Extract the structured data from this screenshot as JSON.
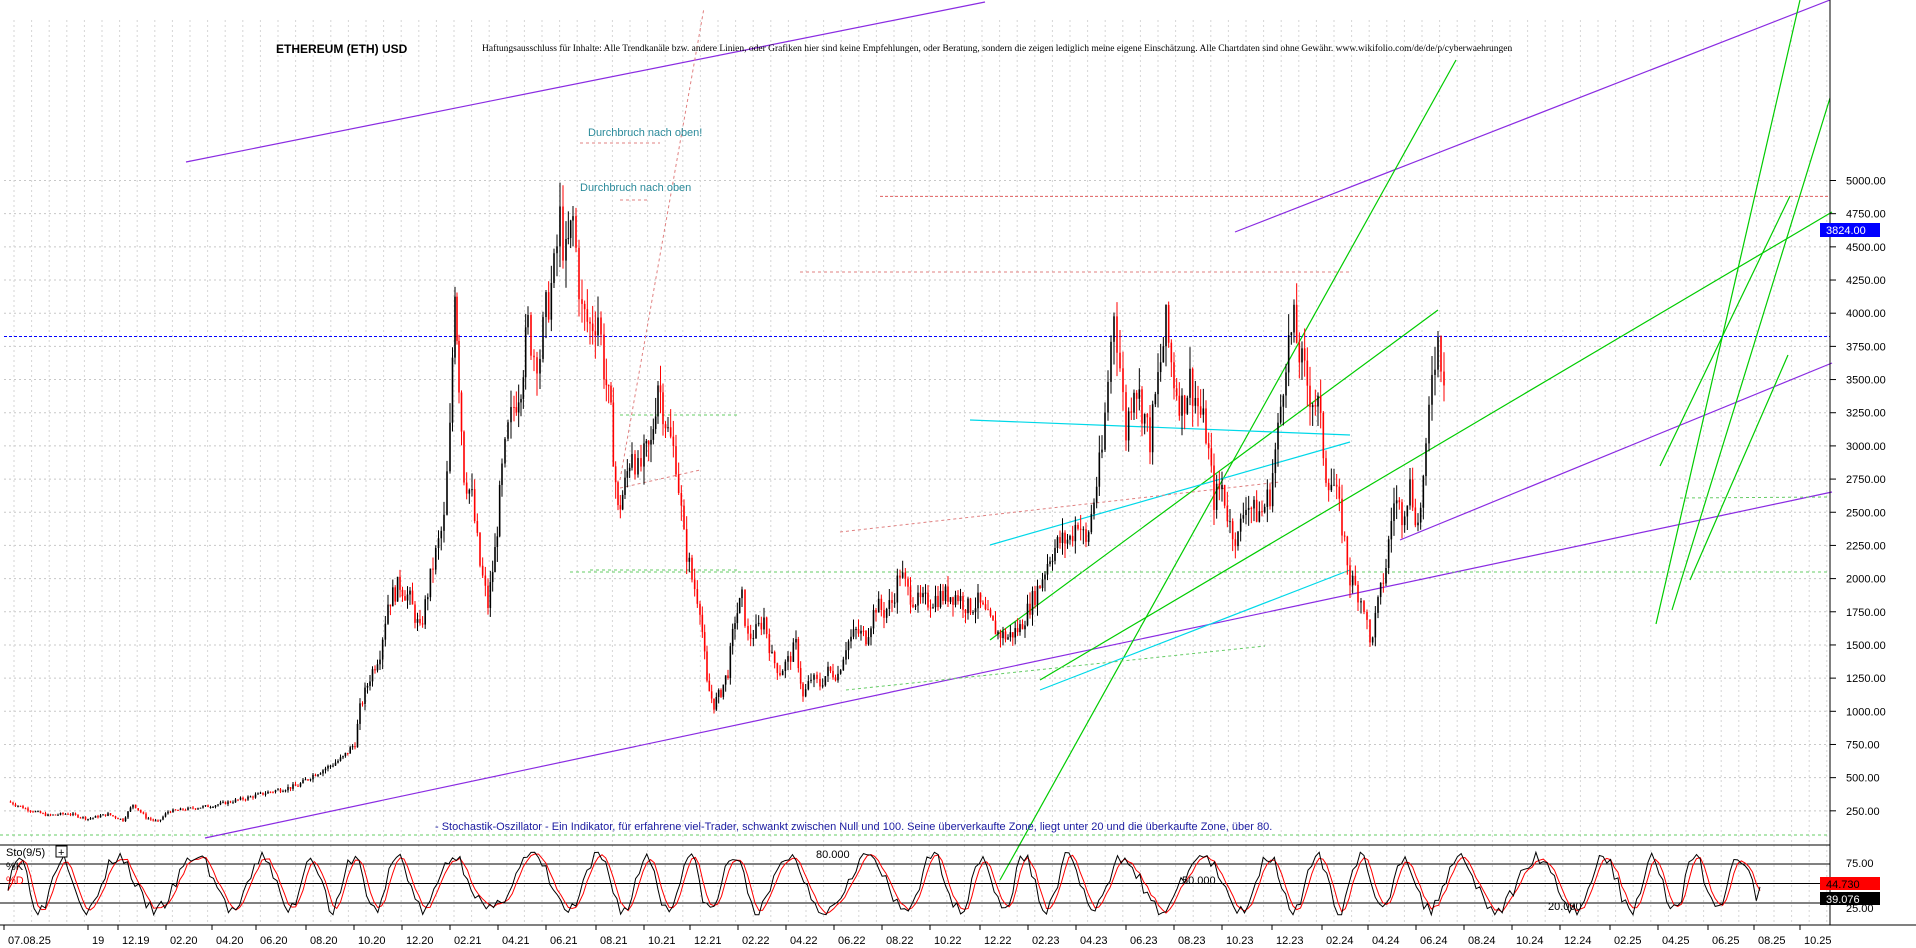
{
  "chart_data": {
    "type": "candlestick",
    "title": "ETHEREUM (ETH) USD",
    "disclaimer": "Haftungsausschluss für Inhalte: Alle Trendkanäle bzw. andere Linien, oder Grafiken hier sind keine Empfehlungen, oder Beratung, sondern die zeigen lediglich meine eigene Einschätzung. Alle Chartdaten sind ohne Gewähr.  www.wikifolio.com/de/de/p/cyberwaehrungen",
    "ylim": [
      0,
      5200
    ],
    "y_ticks": [
      "5000.00",
      "4750.00",
      "4500.00",
      "4250.00",
      "4000.00",
      "3750.00",
      "3500.00",
      "3250.00",
      "3000.00",
      "2750.00",
      "2500.00",
      "2250.00",
      "2000.00",
      "1750.00",
      "1500.00",
      "1250.00",
      "1000.00",
      "750.00",
      "500.00",
      "250.00"
    ],
    "x_ticks": [
      "07.08.25",
      "19",
      "12.19",
      "02.20",
      "04.20",
      "06.20",
      "08.20",
      "10.20",
      "12.20",
      "02.21",
      "04.21",
      "06.21",
      "08.21",
      "10.21",
      "12.21",
      "02.22",
      "04.22",
      "06.22",
      "08.22",
      "10.22",
      "12.22",
      "02.23",
      "04.23",
      "06.23",
      "08.23",
      "10.23",
      "12.23",
      "02.24",
      "04.24",
      "06.24",
      "08.24",
      "10.24",
      "12.24",
      "02.25",
      "04.25",
      "06.25",
      "08.25",
      "10.25"
    ],
    "current_price_label": "3824.00",
    "current_price": 3824,
    "price_path": [
      [
        0,
        320
      ],
      [
        10,
        290
      ],
      [
        20,
        260
      ],
      [
        40,
        215
      ],
      [
        60,
        230
      ],
      [
        80,
        190
      ],
      [
        100,
        225
      ],
      [
        115,
        180
      ],
      [
        125,
        300
      ],
      [
        138,
        200
      ],
      [
        150,
        165
      ],
      [
        160,
        245
      ],
      [
        180,
        265
      ],
      [
        205,
        290
      ],
      [
        220,
        315
      ],
      [
        235,
        340
      ],
      [
        260,
        390
      ],
      [
        290,
        440
      ],
      [
        305,
        520
      ],
      [
        320,
        580
      ],
      [
        335,
        650
      ],
      [
        347,
        760
      ],
      [
        352,
        1020
      ],
      [
        362,
        1260
      ],
      [
        372,
        1450
      ],
      [
        380,
        1820
      ],
      [
        392,
        1960
      ],
      [
        402,
        1840
      ],
      [
        412,
        1600
      ],
      [
        425,
        2100
      ],
      [
        436,
        2430
      ],
      [
        442,
        3100
      ],
      [
        447,
        4250
      ],
      [
        451,
        3500
      ],
      [
        456,
        2800
      ],
      [
        464,
        2600
      ],
      [
        472,
        2100
      ],
      [
        480,
        1800
      ],
      [
        487,
        2200
      ],
      [
        494,
        2800
      ],
      [
        500,
        3100
      ],
      [
        506,
        3300
      ],
      [
        513,
        3500
      ],
      [
        520,
        3900
      ],
      [
        526,
        3700
      ],
      [
        532,
        3700
      ],
      [
        538,
        4000
      ],
      [
        546,
        4300
      ],
      [
        552,
        4700
      ],
      [
        558,
        4400
      ],
      [
        565,
        4700
      ],
      [
        574,
        4000
      ],
      [
        582,
        3900
      ],
      [
        590,
        4000
      ],
      [
        596,
        3600
      ],
      [
        603,
        3200
      ],
      [
        610,
        2500
      ],
      [
        617,
        2700
      ],
      [
        624,
        3000
      ],
      [
        630,
        2800
      ],
      [
        636,
        2900
      ],
      [
        643,
        3000
      ],
      [
        650,
        3500
      ],
      [
        660,
        3100
      ],
      [
        668,
        2900
      ],
      [
        676,
        2300
      ],
      [
        684,
        2000
      ],
      [
        692,
        1800
      ],
      [
        699,
        1200
      ],
      [
        706,
        1050
      ],
      [
        713,
        1150
      ],
      [
        720,
        1300
      ],
      [
        727,
        1700
      ],
      [
        734,
        1850
      ],
      [
        740,
        1550
      ],
      [
        748,
        1600
      ],
      [
        756,
        1700
      ],
      [
        764,
        1400
      ],
      [
        772,
        1300
      ],
      [
        780,
        1380
      ],
      [
        788,
        1500
      ],
      [
        795,
        1100
      ],
      [
        803,
        1250
      ],
      [
        812,
        1200
      ],
      [
        820,
        1300
      ],
      [
        830,
        1280
      ],
      [
        838,
        1500
      ],
      [
        848,
        1600
      ],
      [
        858,
        1560
      ],
      [
        868,
        1800
      ],
      [
        876,
        1750
      ],
      [
        884,
        1820
      ],
      [
        892,
        2050
      ],
      [
        900,
        1900
      ],
      [
        910,
        1820
      ],
      [
        920,
        1830
      ],
      [
        930,
        1860
      ],
      [
        940,
        1880
      ],
      [
        950,
        1870
      ],
      [
        960,
        1780
      ],
      [
        970,
        1820
      ],
      [
        980,
        1700
      ],
      [
        990,
        1590
      ],
      [
        1000,
        1560
      ],
      [
        1012,
        1630
      ],
      [
        1022,
        1800
      ],
      [
        1032,
        1960
      ],
      [
        1042,
        2180
      ],
      [
        1052,
        2280
      ],
      [
        1062,
        2300
      ],
      [
        1070,
        2450
      ],
      [
        1078,
        2250
      ],
      [
        1086,
        2600
      ],
      [
        1094,
        2950
      ],
      [
        1100,
        3500
      ],
      [
        1106,
        4050
      ],
      [
        1112,
        3600
      ],
      [
        1118,
        3100
      ],
      [
        1126,
        3500
      ],
      [
        1134,
        3300
      ],
      [
        1142,
        3050
      ],
      [
        1150,
        3500
      ],
      [
        1158,
        3900
      ],
      [
        1166,
        3500
      ],
      [
        1174,
        3300
      ],
      [
        1182,
        3500
      ],
      [
        1190,
        3300
      ],
      [
        1198,
        3100
      ],
      [
        1206,
        2600
      ],
      [
        1214,
        2700
      ],
      [
        1222,
        2400
      ],
      [
        1230,
        2300
      ],
      [
        1238,
        2600
      ],
      [
        1246,
        2500
      ],
      [
        1254,
        2500
      ],
      [
        1262,
        2650
      ],
      [
        1270,
        3100
      ],
      [
        1278,
        3700
      ],
      [
        1286,
        3900
      ],
      [
        1294,
        3600
      ],
      [
        1302,
        3400
      ],
      [
        1310,
        3300
      ],
      [
        1318,
        2800
      ],
      [
        1326,
        2700
      ],
      [
        1334,
        2400
      ],
      [
        1342,
        2000
      ],
      [
        1350,
        1900
      ],
      [
        1356,
        1800
      ],
      [
        1362,
        1500
      ],
      [
        1370,
        1800
      ],
      [
        1378,
        2100
      ],
      [
        1386,
        2600
      ],
      [
        1394,
        2500
      ],
      [
        1402,
        2700
      ],
      [
        1410,
        2400
      ],
      [
        1418,
        2900
      ],
      [
        1424,
        3600
      ],
      [
        1430,
        3800
      ],
      [
        1436,
        3550
      ]
    ],
    "stochastic": {
      "label": "Sto(9/5)",
      "k_label": "%K",
      "d_label": "%D",
      "k_value_label": "44.730",
      "d_value_label": "39.076",
      "k_value": 44.73,
      "d_value": 39.076,
      "level_labels": [
        "80.000",
        "50.000",
        "20.000"
      ],
      "axis_labels": [
        "75.00",
        "25.00"
      ]
    },
    "annotations": [
      "Durchbruch nach oben!",
      "Durchbruch nach oben",
      "- Stochastik-Oszillator - Ein Indikator, für erfahrene viel-Trader, schwankt zwischen Null und 100. Seine überverkaufte Zone, liegt unter 20 und die überkaufte Zone, über 80."
    ],
    "grid": true,
    "colors": {
      "up": "#000000",
      "down": "#ff0000",
      "trend_main": "#8a2be2",
      "trend_green": "#00cc00",
      "trend_cyan": "#00d8e8",
      "price_line": "#0000ff"
    }
  }
}
